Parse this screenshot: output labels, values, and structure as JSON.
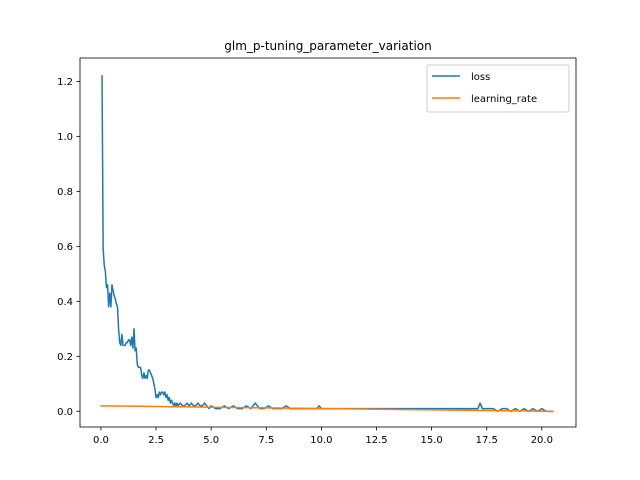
{
  "chart_data": {
    "type": "line",
    "title": "glm_p-tuning_parameter_variation",
    "xlabel": "",
    "ylabel": "",
    "xlim": [
      -0.95,
      21.55
    ],
    "ylim": [
      -0.057,
      1.285
    ],
    "xticks": [
      0.0,
      2.5,
      5.0,
      7.5,
      10.0,
      12.5,
      15.0,
      17.5,
      20.0
    ],
    "xtick_labels": [
      "0.0",
      "2.5",
      "5.0",
      "7.5",
      "10.0",
      "12.5",
      "15.0",
      "17.5",
      "20.0"
    ],
    "yticks": [
      0.0,
      0.2,
      0.4,
      0.6,
      0.8,
      1.0,
      1.2
    ],
    "ytick_labels": [
      "0.0",
      "0.2",
      "0.4",
      "0.6",
      "0.8",
      "1.0",
      "1.2"
    ],
    "grid": false,
    "legend_position": "top-right",
    "series": [
      {
        "name": "loss",
        "color": "#1f77b4",
        "x": [
          0.05,
          0.1,
          0.15,
          0.2,
          0.25,
          0.3,
          0.35,
          0.4,
          0.45,
          0.5,
          0.55,
          0.6,
          0.65,
          0.7,
          0.75,
          0.8,
          0.85,
          0.9,
          0.95,
          1.0,
          1.05,
          1.1,
          1.15,
          1.2,
          1.25,
          1.3,
          1.35,
          1.4,
          1.45,
          1.5,
          1.55,
          1.6,
          1.65,
          1.7,
          1.75,
          1.8,
          1.85,
          1.9,
          1.95,
          2.0,
          2.05,
          2.1,
          2.15,
          2.2,
          2.25,
          2.3,
          2.35,
          2.4,
          2.45,
          2.5,
          2.55,
          2.6,
          2.65,
          2.7,
          2.75,
          2.8,
          2.85,
          2.9,
          2.95,
          3.0,
          3.05,
          3.1,
          3.15,
          3.2,
          3.25,
          3.3,
          3.35,
          3.4,
          3.45,
          3.5,
          3.6,
          3.7,
          3.8,
          3.9,
          4.0,
          4.1,
          4.2,
          4.3,
          4.4,
          4.5,
          4.6,
          4.7,
          4.8,
          4.9,
          5.0,
          5.2,
          5.4,
          5.6,
          5.8,
          6.0,
          6.2,
          6.4,
          6.6,
          6.8,
          7.0,
          7.2,
          7.4,
          7.6,
          7.8,
          8.0,
          8.2,
          8.4,
          8.6,
          8.8,
          9.0,
          9.2,
          9.4,
          9.6,
          9.8,
          9.9,
          10.0,
          10.2,
          10.4,
          10.6,
          10.8,
          11.0,
          11.2,
          11.4,
          11.6,
          11.8,
          12.0,
          12.2,
          12.4,
          12.6,
          12.8,
          13.0,
          13.2,
          13.4,
          13.6,
          13.8,
          14.0,
          14.2,
          14.4,
          14.6,
          14.8,
          15.0,
          15.2,
          15.4,
          15.6,
          15.8,
          16.0,
          16.2,
          16.4,
          16.6,
          16.8,
          17.0,
          17.1,
          17.2,
          17.3,
          17.4,
          17.6,
          17.8,
          18.0,
          18.2,
          18.4,
          18.6,
          18.8,
          19.0,
          19.2,
          19.4,
          19.6,
          19.8,
          20.0,
          20.2,
          20.4,
          20.5
        ],
        "values": [
          1.22,
          0.59,
          0.53,
          0.51,
          0.45,
          0.46,
          0.38,
          0.43,
          0.38,
          0.46,
          0.44,
          0.42,
          0.41,
          0.39,
          0.38,
          0.3,
          0.25,
          0.24,
          0.28,
          0.24,
          0.24,
          0.24,
          0.25,
          0.25,
          0.26,
          0.26,
          0.24,
          0.27,
          0.23,
          0.3,
          0.22,
          0.23,
          0.17,
          0.16,
          0.16,
          0.16,
          0.13,
          0.12,
          0.14,
          0.12,
          0.13,
          0.12,
          0.15,
          0.15,
          0.14,
          0.13,
          0.12,
          0.1,
          0.08,
          0.05,
          0.06,
          0.05,
          0.07,
          0.06,
          0.07,
          0.07,
          0.06,
          0.07,
          0.05,
          0.06,
          0.04,
          0.05,
          0.03,
          0.04,
          0.03,
          0.02,
          0.03,
          0.02,
          0.03,
          0.02,
          0.03,
          0.02,
          0.02,
          0.03,
          0.02,
          0.03,
          0.02,
          0.02,
          0.03,
          0.02,
          0.02,
          0.03,
          0.02,
          0.01,
          0.02,
          0.01,
          0.01,
          0.02,
          0.01,
          0.02,
          0.01,
          0.01,
          0.02,
          0.01,
          0.03,
          0.01,
          0.01,
          0.02,
          0.01,
          0.01,
          0.01,
          0.02,
          0.01,
          0.01,
          0.01,
          0.01,
          0.01,
          0.01,
          0.01,
          0.02,
          0.01,
          0.01,
          0.01,
          0.01,
          0.01,
          0.01,
          0.01,
          0.01,
          0.01,
          0.01,
          0.01,
          0.01,
          0.01,
          0.01,
          0.01,
          0.01,
          0.01,
          0.01,
          0.01,
          0.01,
          0.01,
          0.01,
          0.01,
          0.01,
          0.01,
          0.01,
          0.01,
          0.01,
          0.01,
          0.01,
          0.01,
          0.01,
          0.01,
          0.01,
          0.01,
          0.01,
          0.01,
          0.03,
          0.01,
          0.01,
          0.01,
          0.01,
          0.0,
          0.01,
          0.01,
          0.0,
          0.01,
          0.0,
          0.01,
          0.0,
          0.01,
          0.0,
          0.01,
          0.0,
          0.0,
          0.0
        ]
      },
      {
        "name": "learning_rate",
        "color": "#ff7f0e",
        "x": [
          0.0,
          20.5
        ],
        "values": [
          0.02,
          0.0
        ]
      }
    ]
  }
}
